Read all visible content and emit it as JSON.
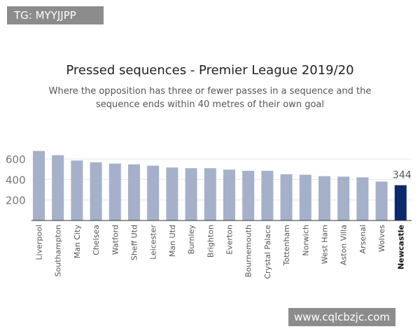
{
  "watermarks": {
    "top": "TG: MYYJJPP",
    "bottom": "www.cqlcbzjc.com"
  },
  "chart_data": {
    "type": "bar",
    "title": "Pressed sequences - Premier League 2019/20",
    "subtitle": "Where the opposition has three or fewer passes in a sequence and the sequence ends within 40 metres of their own goal",
    "xlabel": "",
    "ylabel": "",
    "ylim": [
      0,
      700
    ],
    "yticks": [
      200,
      400,
      600
    ],
    "grid": true,
    "categories": [
      "Liverpool",
      "Southampton",
      "Man City",
      "Chelsea",
      "Watford",
      "Sheff Utd",
      "Leicester",
      "Man Utd",
      "Burnley",
      "Brighton",
      "Everton",
      "Bournemouth",
      "Crystal Palace",
      "Tottenham",
      "Norwich",
      "West Ham",
      "Aston Villa",
      "Arsenal",
      "Wolves",
      "Newcastle"
    ],
    "values": [
      678,
      637,
      585,
      567,
      555,
      548,
      535,
      517,
      510,
      510,
      496,
      485,
      485,
      451,
      446,
      432,
      428,
      421,
      380,
      344
    ],
    "highlight": {
      "category": "Newcastle",
      "label": "344"
    },
    "colors": {
      "bar": "#a5b1cb",
      "highlight": "#0c2a6b",
      "grid": "#e8e8e8",
      "axis": "#333333"
    }
  }
}
